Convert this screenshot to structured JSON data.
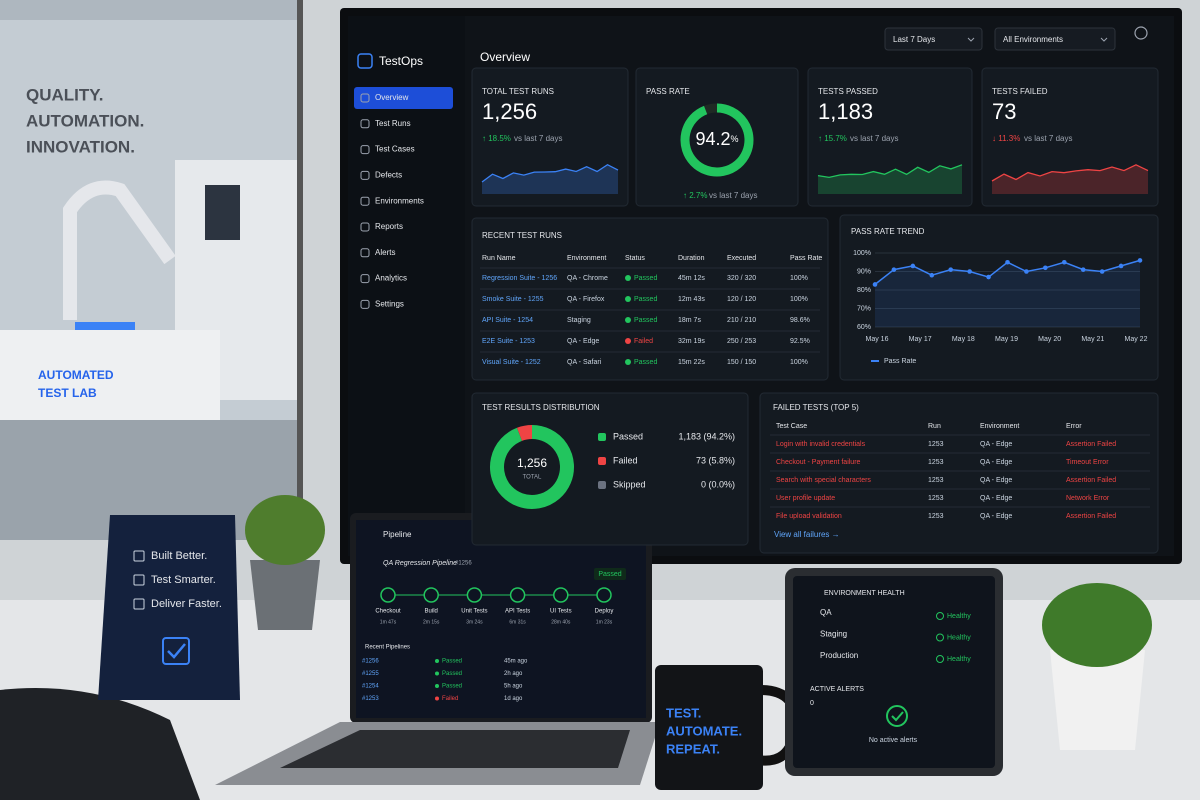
{
  "wall": {
    "lines": [
      "QUALITY.",
      "AUTOMATION.",
      "INNOVATION."
    ],
    "lab_sign": [
      "AUTOMATED",
      "TEST LAB"
    ]
  },
  "dashboard": {
    "brand": "TestOps",
    "title": "Overview",
    "filters": [
      "Last 7 Days",
      "All Environments"
    ],
    "nav": [
      "Overview",
      "Test Runs",
      "Test Cases",
      "Defects",
      "Environments",
      "Reports",
      "Alerts",
      "Analytics",
      "Settings"
    ],
    "kpis": [
      {
        "label": "TOTAL TEST RUNS",
        "value": "1,256",
        "change": "↑ 18.5%",
        "note": "vs last 7 days",
        "color": "#22c55e",
        "spark_color": "#3b82f6"
      },
      {
        "label": "PASS RATE",
        "value": 94.2,
        "unit": "%",
        "change": "↑ 2.7%",
        "note": "vs last 7 days",
        "color": "#22c55e",
        "spark_color": "#22c55e"
      },
      {
        "label": "TESTS PASSED",
        "value": "1,183",
        "change": "↑ 15.7%",
        "note": "vs last 7 days",
        "color": "#22c55e",
        "spark_color": "#22c55e"
      },
      {
        "label": "TESTS FAILED",
        "value": "73",
        "change": "↓ 11.3%",
        "note": "vs last 7 days",
        "color": "#ef4444",
        "spark_color": "#ef4444"
      }
    ],
    "recent_runs": {
      "title": "RECENT TEST RUNS",
      "columns": [
        "Run Name",
        "Environment",
        "Status",
        "Duration",
        "Executed",
        "Pass Rate"
      ],
      "rows": [
        {
          "cells": [
            "Regression Suite - 1256",
            "QA - Chrome",
            "Passed",
            "45m 12s",
            "320 / 320",
            "100%"
          ],
          "status_color": "#22c55e"
        },
        {
          "cells": [
            "Smoke Suite - 1255",
            "QA - Firefox",
            "Passed",
            "12m 43s",
            "120 / 120",
            "100%"
          ],
          "status_color": "#22c55e"
        },
        {
          "cells": [
            "API Suite - 1254",
            "Staging",
            "Passed",
            "18m 7s",
            "210 / 210",
            "98.6%"
          ],
          "status_color": "#22c55e"
        },
        {
          "cells": [
            "E2E Suite - 1253",
            "QA - Edge",
            "Failed",
            "32m 19s",
            "250 / 253",
            "92.5%"
          ],
          "status_color": "#ef4444"
        },
        {
          "cells": [
            "Visual Suite - 1252",
            "QA - Safari",
            "Passed",
            "15m 22s",
            "150 / 150",
            "100%"
          ],
          "status_color": "#22c55e"
        }
      ]
    },
    "trend": {
      "type": "line",
      "title": "PASS RATE TREND",
      "legend": "Pass Rate",
      "color": "#3b82f6",
      "grid": true,
      "categories": [
        "May 16",
        "May 17",
        "May 18",
        "May 19",
        "May 20",
        "May 21",
        "May 22"
      ],
      "values": [
        83,
        91,
        93,
        88,
        91,
        90,
        87,
        95,
        90,
        92,
        95,
        91,
        90,
        93,
        96
      ],
      "ylim": [
        60,
        100
      ],
      "yticks": [
        {
          "value": 60,
          "label": "60%"
        },
        {
          "value": 70,
          "label": "70%"
        },
        {
          "value": 80,
          "label": "80%"
        },
        {
          "value": 90,
          "label": "90%"
        },
        {
          "value": 100,
          "label": "100%"
        }
      ]
    },
    "distribution": {
      "type": "pie",
      "title": "TEST RESULTS DISTRIBUTION",
      "total": "1,256",
      "total_label": "TOTAL",
      "series": [
        {
          "name": "Passed",
          "color": "#22c55e",
          "value": 1183,
          "value_label": "1,183 (94.2%)"
        },
        {
          "name": "Failed",
          "color": "#ef4444",
          "value": 73,
          "value_label": "73 (5.8%)"
        },
        {
          "name": "Skipped",
          "color": "#6b7280",
          "value": 0,
          "value_label": "0 (0.0%)"
        }
      ]
    },
    "failed_tests": {
      "title": "FAILED TESTS (TOP 5)",
      "columns": [
        "Test Case",
        "Run",
        "Environment",
        "Error"
      ],
      "rows": [
        [
          "Login with invalid credentials",
          1253,
          "QA - Edge",
          "Assertion Failed"
        ],
        [
          "Checkout - Payment failure",
          1253,
          "QA - Edge",
          "Timeout Error"
        ],
        [
          "Search with special characters",
          1253,
          "QA - Edge",
          "Assertion Failed"
        ],
        [
          "User profile update",
          1253,
          "QA - Edge",
          "Network Error"
        ],
        [
          "File upload validation",
          1253,
          "QA - Edge",
          "Assertion Failed"
        ]
      ],
      "link": "View all failures →"
    }
  },
  "laptop": {
    "title": "Pipeline",
    "pipeline": "QA Regression Pipeline",
    "pipeline_id": "#1256",
    "status": "Passed",
    "status_color": "#22c55e",
    "stages": [
      {
        "name": "Checkout",
        "time": "1m 47s"
      },
      {
        "name": "Build",
        "time": "2m 15s"
      },
      {
        "name": "Unit Tests",
        "time": "3m 24s"
      },
      {
        "name": "API Tests",
        "time": "6m 31s"
      },
      {
        "name": "UI Tests",
        "time": "28m 40s"
      },
      {
        "name": "Deploy",
        "time": "1m 23s"
      }
    ],
    "recent_title": "Recent Pipelines",
    "recent": [
      {
        "id": "#1256",
        "status": "Passed",
        "color": "#22c55e",
        "ago": "45m ago"
      },
      {
        "id": "#1255",
        "status": "Passed",
        "color": "#22c55e",
        "ago": "2h ago"
      },
      {
        "id": "#1254",
        "status": "Passed",
        "color": "#22c55e",
        "ago": "5h ago"
      },
      {
        "id": "#1253",
        "status": "Failed",
        "color": "#ef4444",
        "ago": "1d ago"
      }
    ]
  },
  "tent_card": [
    "Built Better.",
    "Test Smarter.",
    "Deliver Faster."
  ],
  "mug": [
    "TEST.",
    "AUTOMATE.",
    "REPEAT."
  ],
  "tablet": {
    "env_title": "ENVIRONMENT HEALTH",
    "environments": [
      {
        "name": "QA",
        "status": "Healthy"
      },
      {
        "name": "Staging",
        "status": "Healthy"
      },
      {
        "name": "Production",
        "status": "Healthy"
      }
    ],
    "alerts_title": "ACTIVE ALERTS",
    "alerts_count": 0,
    "alerts_empty": "No active alerts"
  }
}
